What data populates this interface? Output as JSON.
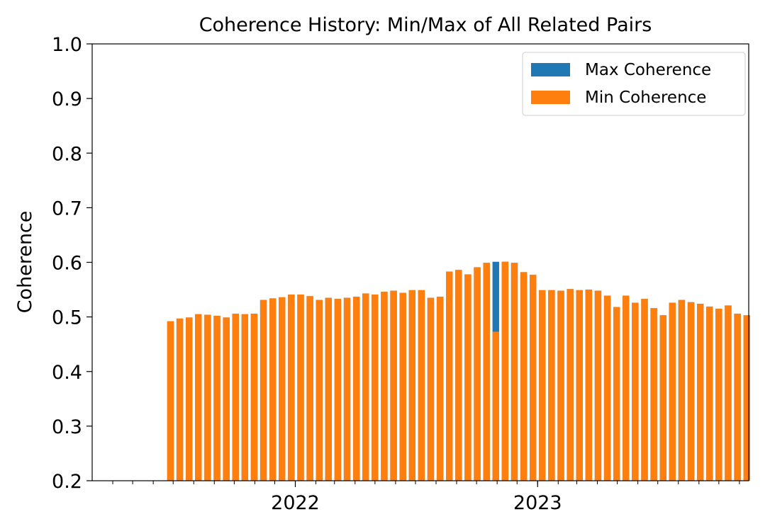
{
  "chart_data": {
    "type": "bar",
    "title": "Coherence History: Min/Max of All Related Pairs",
    "xlabel": "",
    "ylabel": "Coherence",
    "ylim": [
      0.2,
      1.0
    ],
    "yticks": [
      "0.2",
      "0.3",
      "0.4",
      "0.5",
      "0.6",
      "0.7",
      "0.8",
      "0.9",
      "1.0"
    ],
    "xtick_labels": [
      {
        "label": "2022",
        "date": "2022-01-01"
      },
      {
        "label": "2023",
        "date": "2023-01-01"
      }
    ],
    "xlim": [
      "2021-03-01",
      "2023-11-15"
    ],
    "grid": false,
    "legend_position": "top-right",
    "legend": [
      "Max Coherence",
      "Min Coherence"
    ],
    "colors": {
      "max": "#1f77b4",
      "min": "#ff7f0e"
    },
    "x": [
      "2021-06-27",
      "2021-07-11",
      "2021-07-25",
      "2021-08-08",
      "2021-08-22",
      "2021-09-05",
      "2021-09-19",
      "2021-10-03",
      "2021-10-17",
      "2021-10-31",
      "2021-11-14",
      "2021-11-28",
      "2021-12-12",
      "2021-12-26",
      "2022-01-09",
      "2022-01-23",
      "2022-02-06",
      "2022-02-20",
      "2022-03-06",
      "2022-03-20",
      "2022-04-03",
      "2022-04-17",
      "2022-05-01",
      "2022-05-15",
      "2022-05-29",
      "2022-06-12",
      "2022-06-26",
      "2022-07-10",
      "2022-07-24",
      "2022-08-07",
      "2022-08-21",
      "2022-09-04",
      "2022-09-18",
      "2022-10-02",
      "2022-10-16",
      "2022-10-30",
      "2022-11-13",
      "2022-11-27",
      "2022-12-11",
      "2022-12-25",
      "2023-01-08",
      "2023-01-22",
      "2023-02-05",
      "2023-02-19",
      "2023-03-05",
      "2023-03-19",
      "2023-04-02",
      "2023-04-16",
      "2023-04-30",
      "2023-05-14",
      "2023-05-28",
      "2023-06-11",
      "2023-06-25",
      "2023-07-09",
      "2023-07-23",
      "2023-08-06",
      "2023-08-20",
      "2023-09-03",
      "2023-09-17",
      "2023-10-01",
      "2023-10-15",
      "2023-10-29",
      "2023-11-12"
    ],
    "series": [
      {
        "name": "Max Coherence",
        "values": [
          0.492,
          0.497,
          0.499,
          0.505,
          0.504,
          0.502,
          0.499,
          0.506,
          0.505,
          0.506,
          0.531,
          0.534,
          0.536,
          0.541,
          0.541,
          0.538,
          0.531,
          0.535,
          0.533,
          0.535,
          0.537,
          0.543,
          0.541,
          0.546,
          0.548,
          0.544,
          0.549,
          0.549,
          0.535,
          0.537,
          0.583,
          0.586,
          0.578,
          0.591,
          0.599,
          0.601,
          0.601,
          0.599,
          0.582,
          0.577,
          0.549,
          0.549,
          0.548,
          0.551,
          0.549,
          0.55,
          0.548,
          0.539,
          0.518,
          0.539,
          0.526,
          0.533,
          0.516,
          0.503,
          0.526,
          0.531,
          0.527,
          0.524,
          0.519,
          0.515,
          0.521,
          0.506,
          0.503
        ]
      },
      {
        "name": "Min Coherence",
        "values": [
          0.492,
          0.497,
          0.499,
          0.505,
          0.504,
          0.502,
          0.499,
          0.506,
          0.505,
          0.506,
          0.531,
          0.534,
          0.536,
          0.541,
          0.541,
          0.538,
          0.531,
          0.535,
          0.533,
          0.535,
          0.537,
          0.543,
          0.541,
          0.546,
          0.548,
          0.544,
          0.549,
          0.549,
          0.535,
          0.537,
          0.583,
          0.586,
          0.578,
          0.591,
          0.599,
          0.473,
          0.601,
          0.599,
          0.582,
          0.577,
          0.549,
          0.549,
          0.548,
          0.551,
          0.549,
          0.55,
          0.548,
          0.539,
          0.518,
          0.539,
          0.526,
          0.533,
          0.516,
          0.503,
          0.526,
          0.531,
          0.527,
          0.524,
          0.519,
          0.515,
          0.521,
          0.506,
          0.503
        ]
      }
    ]
  }
}
